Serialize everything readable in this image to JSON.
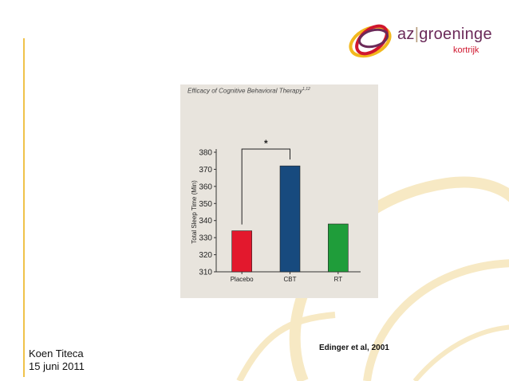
{
  "slide": {
    "author": "Koen Titeca",
    "date": "15 juni 2011",
    "citation": "Edinger et al, 2001"
  },
  "logo": {
    "brand_left": "az",
    "separator": "|",
    "brand_right": "groeninge",
    "subtitle": "kortrijk",
    "colors": {
      "red": "#d0162e",
      "purple": "#6b2a59",
      "yellow": "#f2b81d"
    }
  },
  "colors": {
    "accent_line": "#f0c24a",
    "swirl": "#f7e9c4",
    "panel": "#e8e4dd"
  },
  "chart_data": {
    "type": "bar",
    "title": "Efficacy of Cognitive Behavioral Therapy",
    "title_superscript": "1,12",
    "ylabel": "Total Sleep Time (Min)",
    "xlabel": "",
    "categories": [
      "Placebo",
      "CBT",
      "RT"
    ],
    "values": [
      334,
      372,
      338
    ],
    "colors": [
      "#e3182d",
      "#174a7e",
      "#1f9d3a"
    ],
    "ylim": [
      310,
      380
    ],
    "yticks": [
      310,
      320,
      330,
      340,
      350,
      360,
      370,
      380
    ],
    "significance": {
      "label": "*",
      "between": [
        "Placebo",
        "CBT"
      ]
    },
    "grid": false
  }
}
